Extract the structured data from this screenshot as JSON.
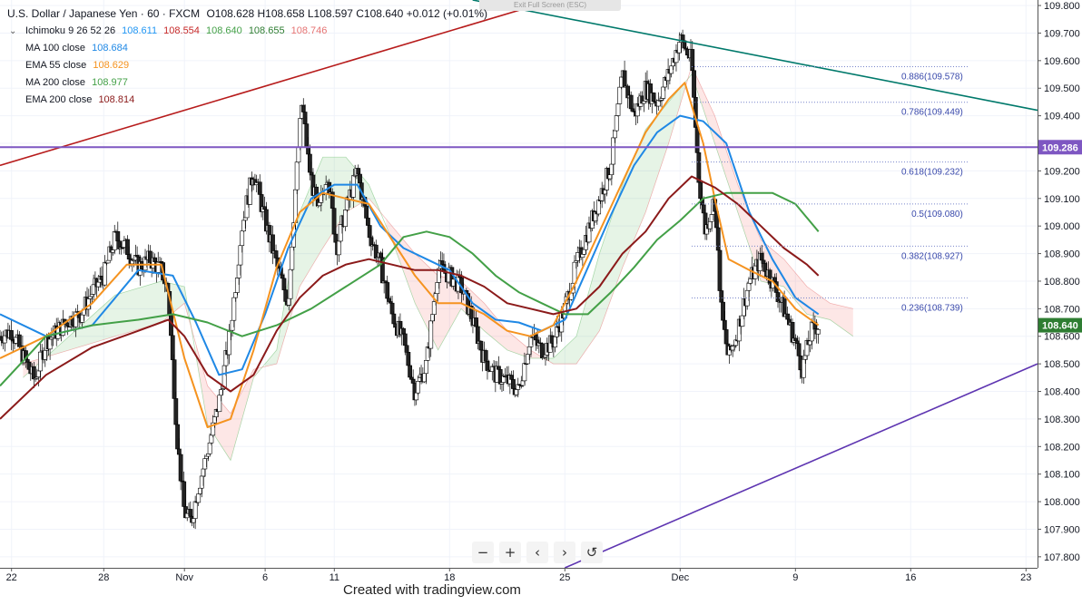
{
  "legend": {
    "title": "U.S. Dollar / Japanese Yen · 60 · FXCM",
    "ohlc": "O108.628 H108.658 L108.597 C108.640 +0.012 (+0.01%)",
    "ichimoku": {
      "label": "Ichimoku 9 26 52 26",
      "values": [
        "108.611",
        "108.554",
        "108.640",
        "108.655",
        "108.746"
      ],
      "colors": [
        "#2196f3",
        "#c62828",
        "#43a047",
        "#2e7d32",
        "#e57373"
      ]
    },
    "indicators": [
      {
        "label": "MA 100 close",
        "value": "108.684",
        "color": "#1f88e5"
      },
      {
        "label": "EMA 55 close",
        "value": "108.629",
        "color": "#f59320"
      },
      {
        "label": "MA 200 close",
        "value": "108.977",
        "color": "#43a047"
      },
      {
        "label": "EMA 200 close",
        "value": "108.814",
        "color": "#8b1a1a"
      }
    ]
  },
  "ui": {
    "exit_full_screen": "Exit Full Screen (ESC)",
    "credit": "Created with tradingview.com",
    "zoom_out": "−",
    "zoom_in": "+",
    "scroll_left": "‹",
    "scroll_right": "›",
    "reset": "↺"
  },
  "chart_data": {
    "type": "candlestick",
    "symbol": "USD/JPY",
    "timeframe": "60",
    "ylim": [
      107.76,
      109.82
    ],
    "y_ticks": [
      107.8,
      107.9,
      108.0,
      108.1,
      108.2,
      108.3,
      108.4,
      108.5,
      108.6,
      108.7,
      108.8,
      108.9,
      109.0,
      109.1,
      109.2,
      109.3,
      109.4,
      109.5,
      109.6,
      109.7,
      109.8
    ],
    "y_tick_labels": [
      "107.800",
      "107.900",
      "108.000",
      "108.100",
      "108.200",
      "108.300",
      "108.400",
      "108.500",
      "108.600",
      "108.700",
      "108.800",
      "108.900",
      "109.000",
      "109.100",
      "109.200",
      "109.300",
      "109.400",
      "109.500",
      "109.600",
      "109.700",
      "109.800"
    ],
    "x_ticks": [
      "22",
      "28",
      "Nov",
      "6",
      "11",
      "18",
      "25",
      "Dec",
      "9",
      "16",
      "23"
    ],
    "x_ticks_t": [
      0.5,
      4.5,
      8,
      11.5,
      14.5,
      19.5,
      24.5,
      29.5,
      34.5,
      39.5,
      44.5
    ],
    "x_range_t": [
      0,
      45
    ],
    "close_path": [
      [
        0,
        108.6
      ],
      [
        0.5,
        108.62
      ],
      [
        1,
        108.53
      ],
      [
        1.5,
        108.44
      ],
      [
        2,
        108.58
      ],
      [
        2.5,
        108.62
      ],
      [
        3,
        108.66
      ],
      [
        3.5,
        108.68
      ],
      [
        4,
        108.76
      ],
      [
        4.5,
        108.82
      ],
      [
        5,
        108.96
      ],
      [
        5.5,
        108.92
      ],
      [
        6,
        108.85
      ],
      [
        6.5,
        108.88
      ],
      [
        7,
        108.84
      ],
      [
        7.3,
        108.76
      ],
      [
        7.7,
        108.22
      ],
      [
        8,
        107.96
      ],
      [
        8.3,
        107.93
      ],
      [
        8.6,
        108.05
      ],
      [
        9,
        108.18
      ],
      [
        9.5,
        108.36
      ],
      [
        10,
        108.62
      ],
      [
        10.5,
        109.0
      ],
      [
        11,
        109.2
      ],
      [
        11.5,
        109.02
      ],
      [
        12,
        108.86
      ],
      [
        12.5,
        108.72
      ],
      [
        12.8,
        109.12
      ],
      [
        13.1,
        109.45
      ],
      [
        13.4,
        109.22
      ],
      [
        13.8,
        109.04
      ],
      [
        14.2,
        109.2
      ],
      [
        14.6,
        108.92
      ],
      [
        15,
        109.06
      ],
      [
        15.5,
        109.2
      ],
      [
        16,
        108.98
      ],
      [
        16.5,
        108.86
      ],
      [
        17,
        108.68
      ],
      [
        17.5,
        108.58
      ],
      [
        18,
        108.4
      ],
      [
        18.5,
        108.5
      ],
      [
        19,
        108.85
      ],
      [
        19.5,
        108.82
      ],
      [
        20,
        108.78
      ],
      [
        20.5,
        108.66
      ],
      [
        21,
        108.52
      ],
      [
        21.5,
        108.46
      ],
      [
        22,
        108.44
      ],
      [
        22.5,
        108.4
      ],
      [
        23,
        108.6
      ],
      [
        23.5,
        108.55
      ],
      [
        24,
        108.58
      ],
      [
        24.5,
        108.7
      ],
      [
        25,
        108.86
      ],
      [
        25.5,
        108.98
      ],
      [
        26,
        109.1
      ],
      [
        26.5,
        109.22
      ],
      [
        27,
        109.55
      ],
      [
        27.5,
        109.4
      ],
      [
        28,
        109.5
      ],
      [
        28.5,
        109.45
      ],
      [
        29,
        109.55
      ],
      [
        29.5,
        109.68
      ],
      [
        30,
        109.6
      ],
      [
        30.3,
        109.18
      ],
      [
        30.6,
        108.98
      ],
      [
        31,
        109.1
      ],
      [
        31.3,
        108.68
      ],
      [
        31.6,
        108.52
      ],
      [
        32,
        108.62
      ],
      [
        32.5,
        108.8
      ],
      [
        33,
        108.88
      ],
      [
        33.5,
        108.8
      ],
      [
        34,
        108.7
      ],
      [
        34.5,
        108.58
      ],
      [
        34.8,
        108.48
      ],
      [
        35.2,
        108.62
      ],
      [
        35.5,
        108.64
      ]
    ],
    "ichimoku_cloud": {
      "span_a": [
        [
          1,
          108.45
        ],
        [
          3,
          108.6
        ],
        [
          5,
          108.75
        ],
        [
          7,
          108.8
        ],
        [
          8,
          108.78
        ],
        [
          9,
          108.28
        ],
        [
          10,
          108.15
        ],
        [
          11,
          108.45
        ],
        [
          12,
          108.55
        ],
        [
          13,
          109.05
        ],
        [
          14,
          109.25
        ],
        [
          15,
          109.25
        ],
        [
          16,
          109.15
        ],
        [
          17,
          108.95
        ],
        [
          18,
          108.72
        ],
        [
          19,
          108.55
        ],
        [
          20,
          108.7
        ],
        [
          21,
          108.62
        ],
        [
          22,
          108.55
        ],
        [
          23,
          108.52
        ],
        [
          24,
          108.52
        ],
        [
          25,
          108.6
        ],
        [
          26,
          108.9
        ],
        [
          27,
          109.15
        ],
        [
          28,
          109.35
        ],
        [
          29,
          109.45
        ],
        [
          30,
          109.55
        ],
        [
          31,
          109.3
        ],
        [
          32,
          109.05
        ],
        [
          33,
          108.8
        ],
        [
          34,
          108.78
        ],
        [
          35,
          108.68
        ],
        [
          36,
          108.66
        ],
        [
          37,
          108.6
        ]
      ],
      "span_b": [
        [
          1,
          108.5
        ],
        [
          3,
          108.55
        ],
        [
          5,
          108.6
        ],
        [
          7,
          108.65
        ],
        [
          8,
          108.72
        ],
        [
          9,
          108.42
        ],
        [
          10,
          108.32
        ],
        [
          11,
          108.48
        ],
        [
          12,
          108.5
        ],
        [
          13,
          108.78
        ],
        [
          14,
          108.92
        ],
        [
          15,
          109.05
        ],
        [
          16,
          109.1
        ],
        [
          17,
          109.0
        ],
        [
          18,
          108.9
        ],
        [
          19,
          108.82
        ],
        [
          20,
          108.8
        ],
        [
          21,
          108.72
        ],
        [
          22,
          108.62
        ],
        [
          23,
          108.55
        ],
        [
          24,
          108.5
        ],
        [
          25,
          108.5
        ],
        [
          26,
          108.62
        ],
        [
          27,
          108.85
        ],
        [
          28,
          109.05
        ],
        [
          29,
          109.3
        ],
        [
          30,
          109.58
        ],
        [
          31,
          109.4
        ],
        [
          32,
          109.15
        ],
        [
          33,
          108.95
        ],
        [
          34,
          108.88
        ],
        [
          35,
          108.78
        ],
        [
          36,
          108.72
        ],
        [
          37,
          108.7
        ]
      ]
    },
    "series": [
      {
        "name": "MA 100 close",
        "color": "#1f88e5",
        "points": [
          [
            0,
            108.68
          ],
          [
            2,
            108.6
          ],
          [
            4,
            108.64
          ],
          [
            6,
            108.84
          ],
          [
            7.5,
            108.82
          ],
          [
            8.5,
            108.65
          ],
          [
            9.5,
            108.46
          ],
          [
            10.5,
            108.48
          ],
          [
            11.5,
            108.68
          ],
          [
            12.5,
            108.92
          ],
          [
            13.5,
            109.1
          ],
          [
            14.5,
            109.15
          ],
          [
            15.5,
            109.15
          ],
          [
            16.5,
            109.0
          ],
          [
            17.5,
            108.92
          ],
          [
            18.5,
            108.88
          ],
          [
            19.5,
            108.84
          ],
          [
            20.5,
            108.72
          ],
          [
            21.5,
            108.66
          ],
          [
            22.5,
            108.65
          ],
          [
            23.5,
            108.62
          ],
          [
            24.5,
            108.66
          ],
          [
            25.5,
            108.85
          ],
          [
            26.5,
            109.04
          ],
          [
            27.5,
            109.22
          ],
          [
            28.5,
            109.34
          ],
          [
            29.5,
            109.4
          ],
          [
            30.5,
            109.38
          ],
          [
            31.5,
            109.3
          ],
          [
            32.5,
            109.05
          ],
          [
            33.5,
            108.88
          ],
          [
            34.5,
            108.74
          ],
          [
            35.5,
            108.68
          ]
        ]
      },
      {
        "name": "EMA 55 close",
        "color": "#f59320",
        "points": [
          [
            0,
            108.52
          ],
          [
            2,
            108.6
          ],
          [
            4,
            108.72
          ],
          [
            5.5,
            108.86
          ],
          [
            7,
            108.86
          ],
          [
            8,
            108.52
          ],
          [
            9,
            108.27
          ],
          [
            10,
            108.3
          ],
          [
            11,
            108.55
          ],
          [
            12,
            108.85
          ],
          [
            13,
            109.05
          ],
          [
            14,
            109.12
          ],
          [
            15,
            109.1
          ],
          [
            16,
            109.08
          ],
          [
            17,
            108.95
          ],
          [
            18,
            108.82
          ],
          [
            19,
            108.72
          ],
          [
            20,
            108.72
          ],
          [
            21,
            108.68
          ],
          [
            22,
            108.62
          ],
          [
            23,
            108.6
          ],
          [
            24,
            108.64
          ],
          [
            25,
            108.8
          ],
          [
            26,
            108.98
          ],
          [
            27,
            109.16
          ],
          [
            28,
            109.34
          ],
          [
            29,
            109.46
          ],
          [
            29.7,
            109.52
          ],
          [
            30.5,
            109.3
          ],
          [
            31,
            109.1
          ],
          [
            31.6,
            108.88
          ],
          [
            32.5,
            108.84
          ],
          [
            33.5,
            108.8
          ],
          [
            34.5,
            108.7
          ],
          [
            35.5,
            108.64
          ]
        ]
      },
      {
        "name": "MA 200 close",
        "color": "#43a047",
        "points": [
          [
            0,
            108.42
          ],
          [
            2,
            108.6
          ],
          [
            4,
            108.64
          ],
          [
            6,
            108.66
          ],
          [
            7.5,
            108.68
          ],
          [
            9,
            108.65
          ],
          [
            10.5,
            108.6
          ],
          [
            12,
            108.64
          ],
          [
            13.5,
            108.7
          ],
          [
            15,
            108.78
          ],
          [
            16.5,
            108.86
          ],
          [
            17.5,
            108.96
          ],
          [
            18.5,
            108.98
          ],
          [
            19.5,
            108.96
          ],
          [
            20.5,
            108.9
          ],
          [
            21.5,
            108.82
          ],
          [
            22.5,
            108.76
          ],
          [
            23.5,
            108.72
          ],
          [
            24.5,
            108.68
          ],
          [
            25.5,
            108.68
          ],
          [
            26.5,
            108.76
          ],
          [
            27.5,
            108.85
          ],
          [
            28.5,
            108.95
          ],
          [
            29.5,
            109.02
          ],
          [
            30.5,
            109.1
          ],
          [
            31.5,
            109.12
          ],
          [
            32.5,
            109.12
          ],
          [
            33.5,
            109.12
          ],
          [
            34.5,
            109.08
          ],
          [
            35.5,
            108.98
          ]
        ]
      },
      {
        "name": "EMA 200 close",
        "color": "#8b1a1a",
        "points": [
          [
            0,
            108.3
          ],
          [
            2,
            108.46
          ],
          [
            4,
            108.56
          ],
          [
            6,
            108.62
          ],
          [
            7.3,
            108.66
          ],
          [
            8,
            108.6
          ],
          [
            9,
            108.46
          ],
          [
            10,
            108.4
          ],
          [
            11,
            108.46
          ],
          [
            12,
            108.62
          ],
          [
            13,
            108.74
          ],
          [
            14,
            108.82
          ],
          [
            15,
            108.86
          ],
          [
            16,
            108.88
          ],
          [
            17,
            108.86
          ],
          [
            18,
            108.84
          ],
          [
            19,
            108.84
          ],
          [
            20,
            108.82
          ],
          [
            21,
            108.78
          ],
          [
            22,
            108.72
          ],
          [
            23,
            108.7
          ],
          [
            24,
            108.68
          ],
          [
            25,
            108.7
          ],
          [
            26,
            108.78
          ],
          [
            27,
            108.9
          ],
          [
            28,
            108.98
          ],
          [
            29,
            109.1
          ],
          [
            30,
            109.18
          ],
          [
            31,
            109.14
          ],
          [
            32,
            109.08
          ],
          [
            33,
            109.0
          ],
          [
            34,
            108.92
          ],
          [
            35,
            108.86
          ],
          [
            35.5,
            108.82
          ]
        ]
      }
    ],
    "drawings": {
      "trendlines": [
        {
          "color": "#b71c1c",
          "from": [
            0,
            109.22
          ],
          "to": [
            24.0,
            109.82
          ]
        },
        {
          "color": "#00796b",
          "from": [
            20.5,
            109.82
          ],
          "to": [
            45,
            109.42
          ]
        },
        {
          "color": "#5e35b1",
          "from": [
            24.5,
            107.76
          ],
          "to": [
            45,
            108.5
          ]
        }
      ],
      "horizontal": {
        "value": 109.286,
        "label": "109.286",
        "color": "#7e57c2"
      },
      "fibonacci": {
        "t_start": 30.0,
        "t_end": 42.0,
        "levels": [
          {
            "ratio": "0.886",
            "value": 109.578
          },
          {
            "ratio": "0.786",
            "value": 109.449
          },
          {
            "ratio": "0.618",
            "value": 109.232
          },
          {
            "ratio": "0.5",
            "value": 109.08
          },
          {
            "ratio": "0.382",
            "value": 108.927
          },
          {
            "ratio": "0.236",
            "value": 108.739
          }
        ]
      }
    },
    "last_price": {
      "value": 108.64,
      "label": "108.640",
      "color": "#2e7d32"
    }
  }
}
